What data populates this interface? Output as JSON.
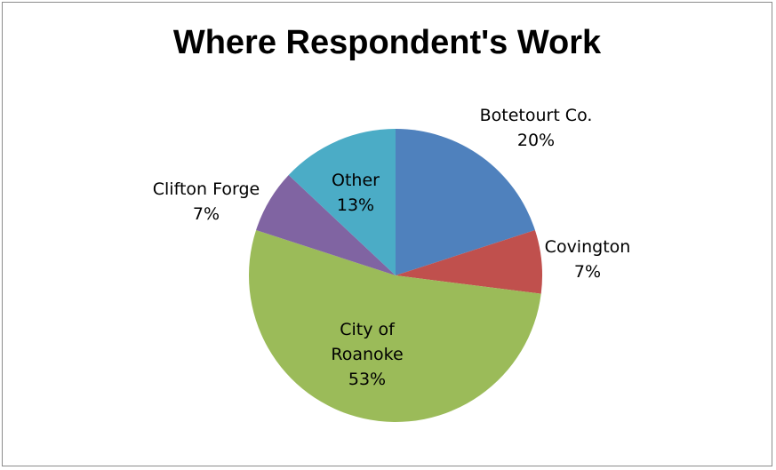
{
  "chart_data": {
    "type": "pie",
    "title": "Where Respondent's Work",
    "slices": [
      {
        "name": "Botetourt Co.",
        "value": 20,
        "label": "20%",
        "color": "#4F81BD"
      },
      {
        "name": "Covington",
        "value": 7,
        "label": "7%",
        "color": "#C0504D"
      },
      {
        "name": "City of Roanoke",
        "value": 53,
        "label": "53%",
        "color": "#9BBB59"
      },
      {
        "name": "Clifton Forge",
        "value": 7,
        "label": "7%",
        "color": "#8064A2"
      },
      {
        "name": "Other",
        "value": 13,
        "label": "13%",
        "color": "#4BACC6"
      }
    ],
    "labels": [
      {
        "lines": [
          "Botetourt Co.",
          "20%"
        ]
      },
      {
        "lines": [
          "Covington",
          "7%"
        ]
      },
      {
        "lines": [
          "City of",
          "Roanoke",
          "53%"
        ]
      },
      {
        "lines": [
          "Clifton Forge",
          "7%"
        ]
      },
      {
        "lines": [
          "Other",
          "13%"
        ]
      }
    ]
  }
}
